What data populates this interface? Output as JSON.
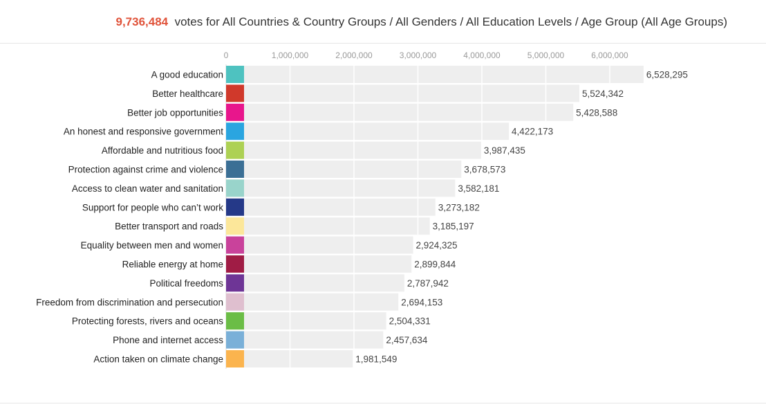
{
  "header": {
    "count": "9,736,484",
    "text": "votes for All Countries & Country Groups / All Genders / All Education Levels / Age Group (All Age Groups)"
  },
  "chart_data": {
    "type": "bar",
    "orientation": "horizontal",
    "xlim": [
      0,
      6600000
    ],
    "ticks": [
      0,
      1000000,
      2000000,
      3000000,
      4000000,
      5000000,
      6000000
    ],
    "tick_labels": [
      "0",
      "1,000,000",
      "2,000,000",
      "3,000,000",
      "4,000,000",
      "5,000,000",
      "6,000,000"
    ],
    "grid": true,
    "categories": [
      "A good education",
      "Better healthcare",
      "Better job opportunities",
      "An honest and responsive government",
      "Affordable and nutritious food",
      "Protection against crime and violence",
      "Access to clean water and sanitation",
      "Support for people who can’t work",
      "Better transport and roads",
      "Equality between men and women",
      "Reliable energy at home",
      "Political freedoms",
      "Freedom from discrimination and persecution",
      "Protecting forests, rivers and oceans",
      "Phone and internet access",
      "Action taken on climate change"
    ],
    "values": [
      6528295,
      5524342,
      5428588,
      4422173,
      3987435,
      3678573,
      3582181,
      3273182,
      3185197,
      2924325,
      2899844,
      2787942,
      2694153,
      2504331,
      2457634,
      1981549
    ],
    "value_labels": [
      "6,528,295",
      "5,524,342",
      "5,428,588",
      "4,422,173",
      "3,987,435",
      "3,678,573",
      "3,582,181",
      "3,273,182",
      "3,185,197",
      "2,924,325",
      "2,899,844",
      "2,787,942",
      "2,694,153",
      "2,504,331",
      "2,457,634",
      "1,981,549"
    ],
    "swatch_colors": [
      "#4ec2c0",
      "#d0392b",
      "#e8168c",
      "#2aa5e0",
      "#add154",
      "#3b6f95",
      "#99d4cb",
      "#253988",
      "#fce79a",
      "#c9429b",
      "#a01c45",
      "#6e3596",
      "#dfbfcf",
      "#6bbd46",
      "#7ab0d8",
      "#fbb44e"
    ],
    "bar_color": "#eeeeee",
    "grid_color": "#ffffff"
  }
}
